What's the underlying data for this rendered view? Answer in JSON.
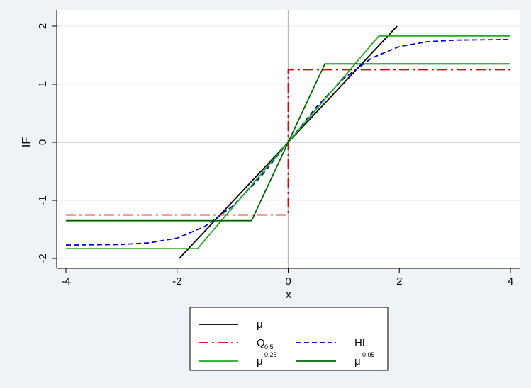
{
  "chart_data": {
    "type": "line",
    "xlabel": "x",
    "ylabel": "IF",
    "xlim": [
      -4,
      4
    ],
    "ylim": [
      -2.05,
      2.05
    ],
    "xticks": [
      -4,
      -2,
      0,
      2,
      4
    ],
    "yticks": [
      -2,
      -1,
      0,
      1,
      2
    ],
    "xtick_labels": [
      "-4",
      "-2",
      "0",
      "2",
      "4"
    ],
    "ytick_labels": [
      "-2",
      "-1",
      "0",
      "1",
      "2"
    ],
    "grid": "horizontal",
    "legend_placement": "bottom",
    "series": [
      {
        "name": "μ",
        "color": "#000000",
        "dash": "solid",
        "points": [
          [
            -1.96,
            -2.0
          ],
          [
            1.96,
            2.0
          ]
        ]
      },
      {
        "name": "Q0.5",
        "color": "#dd0000",
        "dash": "dashdot",
        "points": [
          [
            -4,
            -1.25
          ],
          [
            0,
            -1.25
          ],
          [
            0,
            1.25
          ],
          [
            4,
            1.25
          ]
        ]
      },
      {
        "name": "HL",
        "color": "#0000cc",
        "dash": "dash",
        "points": [
          [
            -4,
            -1.77
          ],
          [
            -3,
            -1.76
          ],
          [
            -2.5,
            -1.73
          ],
          [
            -2,
            -1.65
          ],
          [
            -1.5,
            -1.45
          ],
          [
            -1,
            -1.1
          ],
          [
            -0.5,
            -0.6
          ],
          [
            0,
            0
          ],
          [
            0.5,
            0.6
          ],
          [
            1,
            1.1
          ],
          [
            1.5,
            1.45
          ],
          [
            2,
            1.65
          ],
          [
            2.5,
            1.73
          ],
          [
            3,
            1.76
          ],
          [
            4,
            1.77
          ]
        ]
      },
      {
        "name": "μ0.25",
        "color": "#22aa22",
        "dash": "solid",
        "points": [
          [
            -4,
            -1.83
          ],
          [
            -1.63,
            -1.83
          ],
          [
            1.63,
            1.83
          ],
          [
            4,
            1.83
          ]
        ]
      },
      {
        "name": "μ0.05",
        "color": "#006600",
        "dash": "solid",
        "points": [
          [
            -4,
            -1.35
          ],
          [
            -0.66,
            -1.35
          ],
          [
            0.66,
            1.35
          ],
          [
            4,
            1.35
          ]
        ]
      }
    ],
    "legend": [
      {
        "label": "μ",
        "sub": "",
        "sup": "",
        "color": "#000000",
        "dash": "solid"
      },
      {
        "label": "Q",
        "sub": "0.5",
        "sup": "",
        "color": "#dd0000",
        "dash": "dashdot"
      },
      {
        "label": "HL",
        "sub": "",
        "sup": "",
        "color": "#0000cc",
        "dash": "dash"
      },
      {
        "label": "μ",
        "sub": "",
        "sup": "0.25",
        "color": "#22aa22",
        "dash": "solid"
      },
      {
        "label": "μ",
        "sub": "",
        "sup": "0.05",
        "color": "#006600",
        "dash": "solid"
      }
    ]
  },
  "colors": {
    "background": "#eef3f7",
    "plot_background": "#ffffff",
    "grid": "#e6eaed",
    "zero_line": "#bbbbbb"
  }
}
